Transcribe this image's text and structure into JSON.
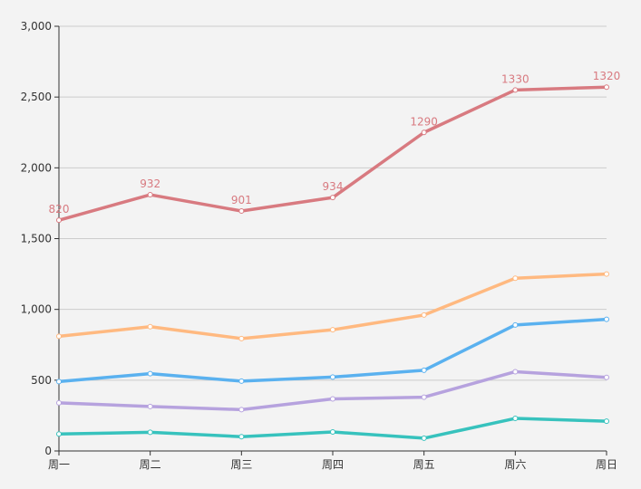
{
  "chart_data": {
    "type": "line",
    "title": "",
    "xlabel": "",
    "ylabel": "",
    "categories": [
      "周一",
      "周二",
      "周三",
      "周四",
      "周五",
      "周六",
      "周日"
    ],
    "ylim": [
      0,
      3000
    ],
    "yticks": [
      0,
      500,
      1000,
      1500,
      2000,
      2500,
      3000
    ],
    "ytick_labels": [
      "0",
      "500",
      "1,000",
      "1,500",
      "2,000",
      "2,500",
      "3,000"
    ],
    "grid": true,
    "series": [
      {
        "color": "#37c2bd",
        "values": [
          120,
          132,
          101,
          134,
          90,
          230,
          210
        ]
      },
      {
        "color": "#b6a2de",
        "values": [
          220,
          182,
          191,
          234,
          290,
          330,
          310
        ]
      },
      {
        "color": "#5ab1ef",
        "values": [
          150,
          232,
          201,
          154,
          190,
          330,
          410
        ]
      },
      {
        "color": "#ffb980",
        "values": [
          320,
          332,
          301,
          334,
          390,
          330,
          320
        ]
      },
      {
        "color": "#d87a80",
        "values": [
          820,
          932,
          901,
          934,
          1290,
          1330,
          1320
        ],
        "data_labels": [
          "820",
          "932",
          "901",
          "934",
          "1290",
          "1330",
          "1320"
        ]
      }
    ],
    "stacked": true
  }
}
